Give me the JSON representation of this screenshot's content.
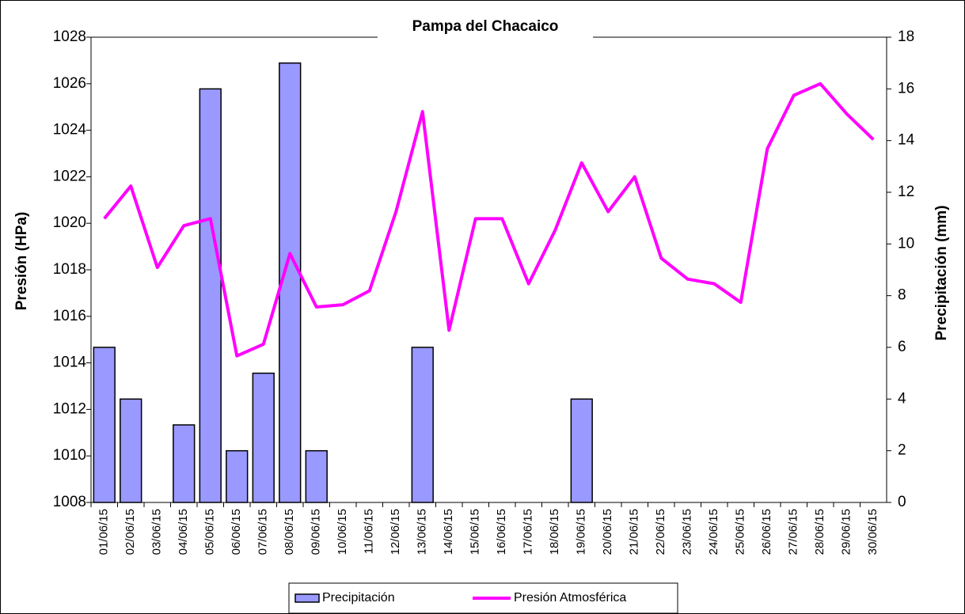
{
  "chart_data": {
    "type": "bar_line",
    "title": "Pampa del Chacaico",
    "y_label": "Presión (HPa)",
    "y2_label": "Precipitación (mm)",
    "categories": [
      "01/06/15",
      "02/06/15",
      "03/06/15",
      "04/06/15",
      "05/06/15",
      "06/06/15",
      "07/06/15",
      "08/06/15",
      "09/06/15",
      "10/06/15",
      "11/06/15",
      "12/06/15",
      "13/06/15",
      "14/06/15",
      "15/06/15",
      "16/06/15",
      "17/06/15",
      "18/06/15",
      "19/06/15",
      "20/06/15",
      "21/06/15",
      "22/06/15",
      "23/06/15",
      "24/06/15",
      "25/06/15",
      "26/06/15",
      "27/06/15",
      "28/06/15",
      "29/06/15",
      "30/06/15"
    ],
    "series": [
      {
        "name": "Precipitación",
        "type": "bar",
        "axis": "y2",
        "color": "#9999ff",
        "values": [
          6,
          4,
          0,
          3,
          16,
          2,
          5,
          17,
          2,
          0,
          0,
          0,
          6,
          0,
          0,
          0,
          0,
          0,
          4,
          0,
          0,
          0,
          0,
          0,
          0,
          0,
          0,
          0,
          0,
          0
        ]
      },
      {
        "name": "Presión Atmosférica",
        "type": "line",
        "axis": "y",
        "color": "#ff00ff",
        "values": [
          1020.2,
          1021.6,
          1018.1,
          1019.9,
          1020.2,
          1014.3,
          1014.8,
          1018.7,
          1016.4,
          1016.5,
          1017.1,
          1020.5,
          1024.8,
          1015.4,
          1020.2,
          1020.2,
          1017.4,
          1019.7,
          1022.6,
          1020.5,
          1022.0,
          1018.5,
          1017.6,
          1017.4,
          1016.6,
          1023.2,
          1025.5,
          1026.0,
          1024.7,
          1023.6
        ]
      }
    ],
    "ylim": [
      1008,
      1028
    ],
    "yticks": [
      1008,
      1010,
      1012,
      1014,
      1016,
      1018,
      1020,
      1022,
      1024,
      1026,
      1028
    ],
    "y2lim": [
      0,
      18
    ],
    "y2ticks": [
      0,
      2,
      4,
      6,
      8,
      10,
      12,
      14,
      16,
      18
    ],
    "legend": "bottom"
  }
}
